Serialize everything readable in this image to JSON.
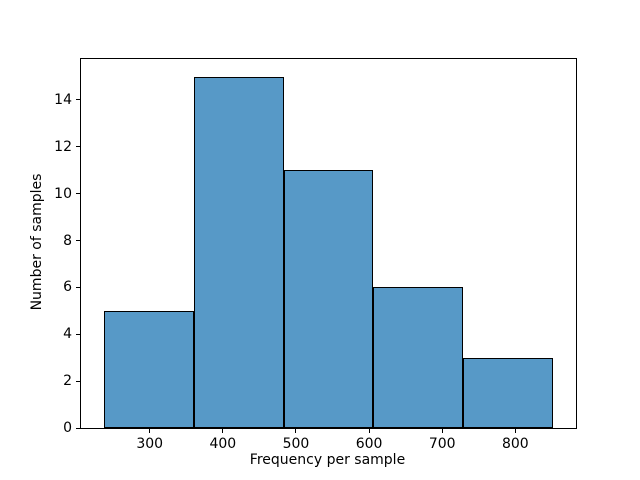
{
  "chart_data": {
    "type": "bar",
    "subtype": "histogram",
    "title": "",
    "xlabel": "Frequency per sample",
    "ylabel": "Number of samples",
    "bin_edges": [
      238,
      361,
      483,
      606,
      729,
      851
    ],
    "values": [
      5,
      15,
      11,
      6,
      3
    ],
    "xticks": [
      300,
      400,
      500,
      600,
      700,
      800
    ],
    "yticks": [
      0,
      2,
      4,
      6,
      8,
      10,
      12,
      14
    ],
    "xlim": [
      206,
      883
    ],
    "ylim": [
      0,
      15.75
    ],
    "bar_fill_color": "#5799c7",
    "bar_edge_color": "#000000",
    "axis_color": "#000000",
    "background_color": "#ffffff",
    "grid": false,
    "legend": false
  }
}
